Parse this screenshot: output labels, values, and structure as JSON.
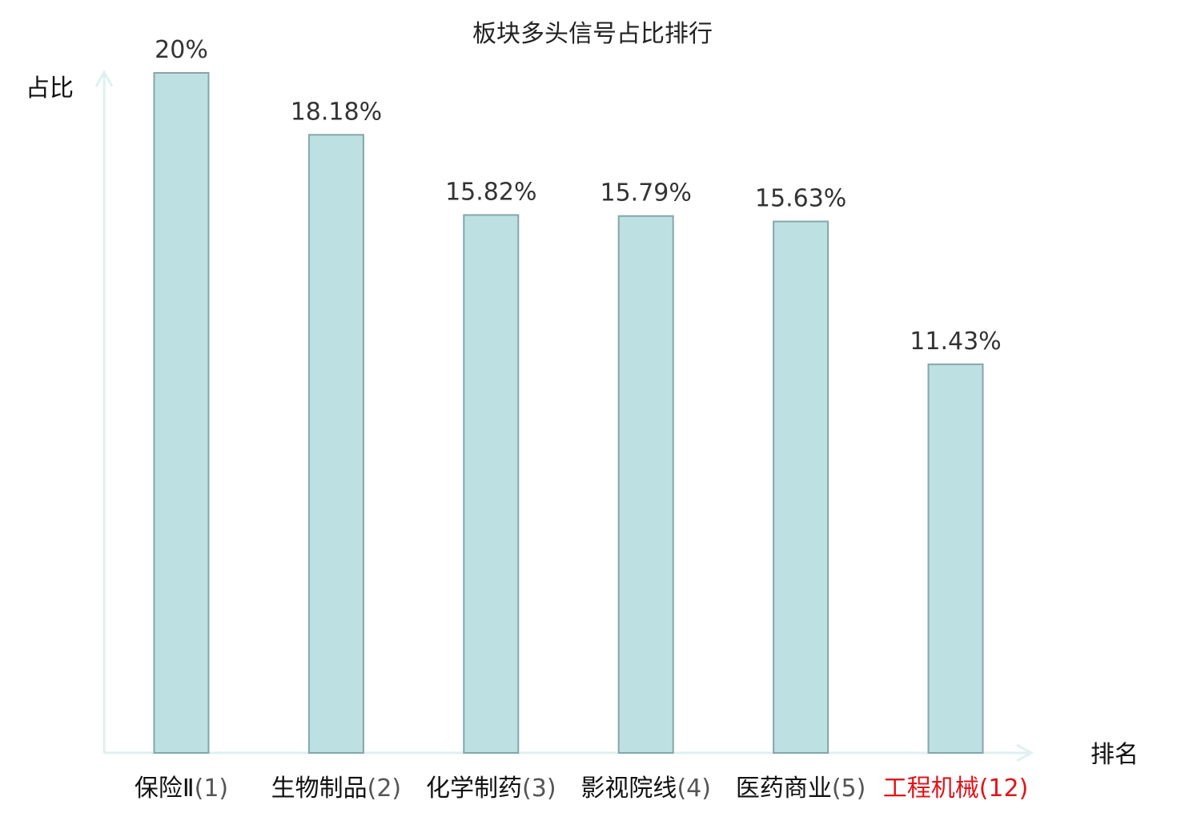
{
  "chart_data": {
    "type": "bar",
    "title": "板块多头信号占比排行",
    "ylabel": "占比",
    "xlabel": "排名",
    "ylim": [
      0,
      20
    ],
    "grid": false,
    "legend": "none",
    "categories": [
      {
        "name": "保险Ⅱ",
        "rank": "(1)"
      },
      {
        "name": "生物制品",
        "rank": "(2)"
      },
      {
        "name": "化学制药",
        "rank": "(3)"
      },
      {
        "name": "影视院线",
        "rank": "(4)"
      },
      {
        "name": "医药商业",
        "rank": "(5)"
      },
      {
        "name": "工程机械",
        "rank": "(12)",
        "highlight": true
      }
    ],
    "values": [
      20,
      18.18,
      15.82,
      15.79,
      15.63,
      11.43
    ],
    "value_labels": [
      "20%",
      "18.18%",
      "15.82%",
      "15.79%",
      "15.63%",
      "11.43%"
    ],
    "colors": {
      "bar_fill": "#bde0e2",
      "bar_stroke": "#86a6a8",
      "axis": "#dff1ef",
      "label_text": "#111111",
      "name_highlight": "#e1141b",
      "rank_default": "#555555",
      "rank_highlight": "#e1141b"
    }
  }
}
